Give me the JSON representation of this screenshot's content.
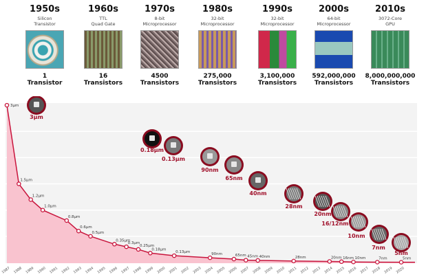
{
  "eras": [
    {
      "decade": "1950s",
      "desc1": "Silicon",
      "desc2": "Transistor",
      "count": "1",
      "unit": "Transistor",
      "chip": "silicon-transistor-photo"
    },
    {
      "decade": "1960s",
      "desc1": "TTL",
      "desc2": "Quad Gate",
      "count": "16",
      "unit": "Transistors",
      "chip": "ttl-quad-gate-photo"
    },
    {
      "decade": "1970s",
      "desc1": "8-bit",
      "desc2": "Microprocessor",
      "count": "4500",
      "unit": "Transistors",
      "chip": "8bit-microprocessor-photo"
    },
    {
      "decade": "1980s",
      "desc1": "32-bit",
      "desc2": "Microprocessor",
      "count": "275,000",
      "unit": "Transistors",
      "chip": "32bit-microprocessor-photo"
    },
    {
      "decade": "1990s",
      "desc1": "32-bit",
      "desc2": "Microprocessor",
      "count": "3,100,000",
      "unit": "Transistors",
      "chip": "32bit-microprocessor-color-photo"
    },
    {
      "decade": "2000s",
      "desc1": "64-bit",
      "desc2": "Microprocessor",
      "count": "592,000,000",
      "unit": "Transistors",
      "chip": "64bit-microprocessor-photo"
    },
    {
      "decade": "2010s",
      "desc1": "3072-Core",
      "desc2": "GPU",
      "count": "8,000,000,000",
      "unit": "Transistors",
      "chip": "gpu-die-photo"
    }
  ],
  "chart_data": {
    "type": "area",
    "title": "",
    "xlabel": "",
    "ylabel": "",
    "x_ticks": [
      1987,
      1988,
      1989,
      1990,
      1991,
      1992,
      1993,
      1994,
      1995,
      1996,
      1997,
      1998,
      1999,
      2000,
      2001,
      2002,
      2003,
      2004,
      2005,
      2006,
      2007,
      2008,
      2009,
      2010,
      2011,
      2012,
      2013,
      2014,
      2015,
      2016,
      2017,
      2018,
      2019,
      2020
    ],
    "xlim": [
      1987,
      2020
    ],
    "ylim_um": [
      0,
      3
    ],
    "grid": true,
    "colors": {
      "line": "#c8143c",
      "fill": "#f9c3cf",
      "background": "#f3f3f3",
      "badge": "#a0102a"
    },
    "points": [
      {
        "year": 1987,
        "value_um": 3,
        "label": "3µm"
      },
      {
        "year": 1988,
        "value_um": 1.5,
        "label": "1.5µm"
      },
      {
        "year": 1989,
        "value_um": 1.2,
        "label": "1.2µm"
      },
      {
        "year": 1990,
        "value_um": 1.0,
        "label": "1.0µm"
      },
      {
        "year": 1992,
        "value_um": 0.8,
        "label": "0.8µm"
      },
      {
        "year": 1993,
        "value_um": 0.6,
        "label": "0.6µm"
      },
      {
        "year": 1994,
        "value_um": 0.5,
        "label": "0.5µm"
      },
      {
        "year": 1996,
        "value_um": 0.35,
        "label": "0.35µm"
      },
      {
        "year": 1997,
        "value_um": 0.3,
        "label": "0.3µm"
      },
      {
        "year": 1998,
        "value_um": 0.25,
        "label": "0.25µm"
      },
      {
        "year": 1999,
        "value_um": 0.18,
        "label": "0.18µm"
      },
      {
        "year": 2001,
        "value_um": 0.13,
        "label": "0.13µm"
      },
      {
        "year": 2004,
        "value_um": 0.09,
        "label": "90nm"
      },
      {
        "year": 2006,
        "value_um": 0.065,
        "label": "65nm"
      },
      {
        "year": 2007,
        "value_um": 0.045,
        "label": "45nm"
      },
      {
        "year": 2008,
        "value_um": 0.04,
        "label": "40nm"
      },
      {
        "year": 2011,
        "value_um": 0.028,
        "label": "28nm"
      },
      {
        "year": 2014,
        "value_um": 0.02,
        "label": "20nm"
      },
      {
        "year": 2015,
        "value_um": 0.016,
        "label": "16nm"
      },
      {
        "year": 2016,
        "value_um": 0.01,
        "label": "10nm"
      },
      {
        "year": 2018,
        "value_um": 0.007,
        "label": "7nm"
      },
      {
        "year": 2020,
        "value_um": 0.005,
        "label": "5nm"
      }
    ],
    "badges": [
      "3µm",
      "0.18µm",
      "0.13µm",
      "90nm",
      "65nm",
      "40nm",
      "28nm",
      "20nm",
      "16/12nm",
      "10nm",
      "7nm",
      "5nm"
    ]
  }
}
